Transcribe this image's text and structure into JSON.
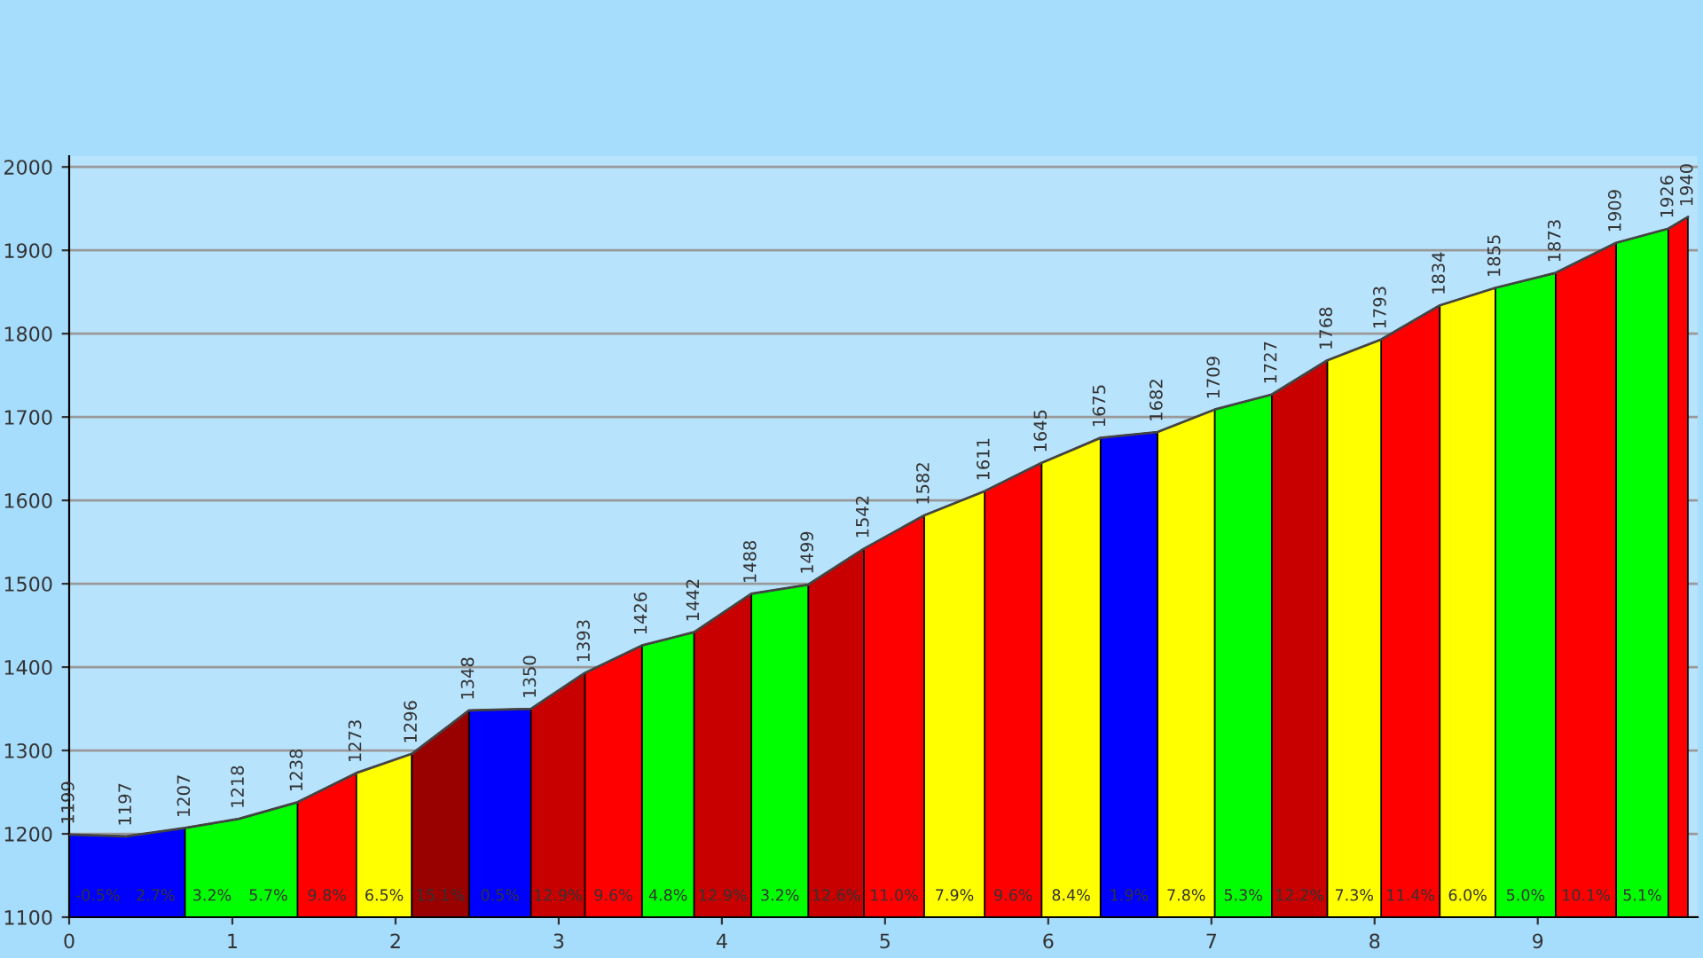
{
  "chart_data": {
    "type": "area",
    "series": [
      {
        "color": "#0000ff",
        "x": [
          0,
          0.35,
          0.71,
          null,
          2.45,
          2.83,
          null,
          6.32,
          6.67
        ],
        "values": [
          1199,
          1197,
          1207,
          null,
          1348,
          1350,
          null,
          1675,
          1682
        ]
      },
      {
        "color": "#00ff00",
        "x": [
          0.71,
          1.04,
          1.4,
          null,
          3.51,
          3.83,
          null,
          4.18,
          4.53,
          null,
          7.02,
          7.37,
          null,
          8.74,
          9.11,
          null,
          9.48,
          9.8
        ],
        "values": [
          1207,
          1218,
          1238,
          null,
          1426,
          1442,
          null,
          1488,
          1499,
          null,
          1709,
          1727,
          null,
          1855,
          1873,
          null,
          1909,
          1926
        ]
      },
      {
        "color": "#ff0000",
        "x": [
          1.4,
          1.76,
          null,
          3.16,
          3.51,
          null,
          4.87,
          5.24,
          null,
          5.61,
          5.96,
          null,
          8.04,
          8.4,
          null,
          9.11,
          9.48,
          null,
          9.8,
          9.92
        ],
        "values": [
          1238,
          1273,
          null,
          1393,
          1426,
          null,
          1542,
          1582,
          null,
          1611,
          1645,
          null,
          1793,
          1834,
          null,
          1873,
          1909,
          null,
          1926,
          1940
        ]
      },
      {
        "color": "#ffff00",
        "x": [
          1.76,
          2.1,
          null,
          5.24,
          5.61,
          null,
          5.96,
          6.32,
          null,
          6.67,
          7.02,
          null,
          7.71,
          8.04,
          null,
          8.4,
          8.74
        ],
        "values": [
          1273,
          1296,
          null,
          1582,
          1611,
          null,
          1645,
          1675,
          null,
          1682,
          1709,
          null,
          1768,
          1793,
          null,
          1834,
          1855
        ]
      },
      {
        "color": "#990000",
        "x": [
          2.1,
          2.45
        ],
        "values": [
          1296,
          1348
        ]
      },
      {
        "color": "#c80000",
        "x": [
          2.83,
          3.16,
          null,
          3.83,
          4.18,
          null,
          4.53,
          4.87,
          null,
          7.37,
          7.71
        ],
        "values": [
          1350,
          1393,
          null,
          1442,
          1488,
          null,
          1499,
          1542,
          null,
          1727,
          1768
        ]
      },
      {
        "type": "line",
        "color": "#444444",
        "x": [
          0,
          0.35,
          0.71,
          1.04,
          1.4,
          1.76,
          2.1,
          2.45,
          2.83,
          3.16,
          3.51,
          3.83,
          4.18,
          4.53,
          4.87,
          5.24,
          5.61,
          5.96,
          6.32,
          6.67,
          7.02,
          7.37,
          7.71,
          8.04,
          8.4,
          8.74,
          9.11,
          9.48,
          9.8,
          9.92
        ],
        "values": [
          1199,
          1197,
          1207,
          1218,
          1238,
          1273,
          1296,
          1348,
          1350,
          1393,
          1426,
          1442,
          1488,
          1499,
          1542,
          1582,
          1611,
          1645,
          1675,
          1682,
          1709,
          1727,
          1768,
          1793,
          1834,
          1855,
          1873,
          1909,
          1926,
          1940
        ],
        "value_labels": [
          "1199",
          "1197",
          "1207",
          "1218",
          "1238",
          "1273",
          "1296",
          "1348",
          "1350",
          "1393",
          "1426",
          "1442",
          "1488",
          "1499",
          "1542",
          "1582",
          "1611",
          "1645",
          "1675",
          "1682",
          "1709",
          "1727",
          "1768",
          "1793",
          "1834",
          "1855",
          "1873",
          "1909",
          "1926",
          "1940"
        ]
      }
    ],
    "annotations": [
      "-0.5%",
      "2.7%",
      "3.2%",
      "5.7%",
      "9.8%",
      "6.5%",
      "15.1%",
      "0.5%",
      "12.9%",
      "9.6%",
      "4.8%",
      "12.9%",
      "3.2%",
      "12.6%",
      "11.0%",
      "7.9%",
      "9.6%",
      "8.4%",
      "1.9%",
      "7.8%",
      "5.3%",
      "12.2%",
      "7.3%",
      "11.4%",
      "6.0%",
      "5.0%",
      "10.1%",
      "5.1%"
    ],
    "xlim": [
      0,
      9.98
    ],
    "xticks": [
      0,
      1,
      2,
      3,
      4,
      5,
      6,
      7,
      8,
      9
    ],
    "ylim": [
      1100,
      2013
    ],
    "yticks": [
      1100,
      1200,
      1300,
      1400,
      1500,
      1600,
      1700,
      1800,
      1900,
      2000
    ],
    "grid": "y"
  }
}
